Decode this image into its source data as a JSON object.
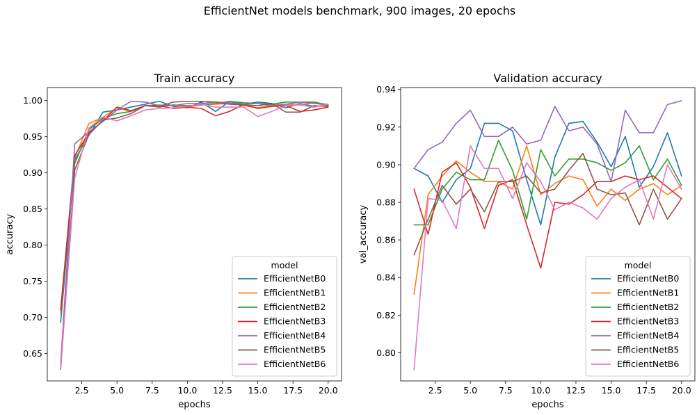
{
  "figure_title": "EfficientNet models benchmark, 900 images, 20 epochs",
  "colors": [
    "#1f77b4",
    "#ff7f0e",
    "#2ca02c",
    "#d62728",
    "#9467bd",
    "#8c564b",
    "#e377c2"
  ],
  "chart_data": [
    {
      "type": "line",
      "title": "Train accuracy",
      "xlabel": "epochs",
      "ylabel": "accuracy",
      "xlim": [
        0.05,
        20.95
      ],
      "ylim": [
        0.612,
        1.018
      ],
      "xticks": [
        2.5,
        5.0,
        7.5,
        10.0,
        12.5,
        15.0,
        17.5,
        20.0
      ],
      "xtick_labels": [
        "2.5",
        "5.0",
        "7.5",
        "10.0",
        "12.5",
        "15.0",
        "17.5",
        "20.0"
      ],
      "yticks": [
        0.65,
        0.7,
        0.75,
        0.8,
        0.85,
        0.9,
        0.95,
        1.0
      ],
      "ytick_labels": [
        "0.65",
        "0.70",
        "0.75",
        "0.80",
        "0.85",
        "0.90",
        "0.95",
        "1.00"
      ],
      "legend": {
        "title": "model",
        "placement": "lower-right"
      },
      "grid": false,
      "x": [
        1,
        2,
        3,
        4,
        5,
        6,
        7,
        8,
        9,
        10,
        11,
        12,
        13,
        14,
        15,
        16,
        17,
        18,
        19,
        20
      ],
      "series": [
        {
          "name": "EfficientNetB0",
          "values": [
            0.693,
            0.918,
            0.952,
            0.984,
            0.987,
            0.991,
            0.995,
            0.999,
            0.992,
            0.99,
            0.998,
            0.985,
            0.999,
            0.995,
            0.998,
            0.996,
            0.99,
            0.996,
            0.992,
            0.993
          ]
        },
        {
          "name": "EfficientNetB1",
          "values": [
            0.705,
            0.921,
            0.968,
            0.977,
            0.99,
            0.985,
            0.993,
            0.994,
            0.993,
            0.991,
            0.994,
            0.995,
            0.996,
            0.993,
            0.99,
            0.994,
            0.995,
            0.994,
            0.997,
            0.992
          ]
        },
        {
          "name": "EfficientNetB2",
          "values": [
            0.709,
            0.913,
            0.96,
            0.975,
            0.982,
            0.985,
            0.993,
            0.991,
            0.994,
            0.993,
            0.994,
            0.996,
            0.999,
            0.997,
            0.996,
            0.995,
            0.998,
            0.998,
            0.998,
            0.994
          ]
        },
        {
          "name": "EfficientNetB3",
          "values": [
            0.711,
            0.924,
            0.955,
            0.972,
            0.991,
            0.986,
            0.993,
            0.993,
            0.989,
            0.991,
            0.989,
            0.979,
            0.985,
            0.995,
            0.989,
            0.992,
            0.993,
            0.985,
            0.987,
            0.991
          ]
        },
        {
          "name": "EfficientNetB4",
          "values": [
            0.636,
            0.94,
            0.957,
            0.971,
            0.987,
            0.999,
            0.998,
            0.993,
            0.993,
            0.996,
            0.996,
            0.998,
            0.997,
            0.995,
            0.996,
            0.993,
            0.995,
            0.998,
            0.996,
            0.995
          ]
        },
        {
          "name": "EfficientNetB5",
          "values": [
            0.628,
            0.904,
            0.953,
            0.973,
            0.976,
            0.982,
            0.993,
            0.992,
            0.998,
            0.999,
            0.999,
            0.998,
            0.995,
            0.994,
            0.993,
            0.996,
            0.984,
            0.984,
            0.993,
            0.992
          ]
        },
        {
          "name": "EfficientNetB6",
          "values": [
            0.629,
            0.893,
            0.962,
            0.977,
            0.972,
            0.979,
            0.987,
            0.989,
            0.99,
            0.992,
            0.995,
            0.991,
            0.991,
            0.991,
            0.978,
            0.985,
            0.993,
            0.994,
            0.991,
            0.995
          ]
        }
      ]
    },
    {
      "type": "line",
      "title": "Validation accuracy",
      "xlabel": "epochs",
      "ylabel": "val_accuracy",
      "xlim": [
        0.05,
        20.95
      ],
      "ylim": [
        0.785,
        0.941
      ],
      "xticks": [
        2.5,
        5.0,
        7.5,
        10.0,
        12.5,
        15.0,
        17.5,
        20.0
      ],
      "xtick_labels": [
        "2.5",
        "5.0",
        "7.5",
        "10.0",
        "12.5",
        "15.0",
        "17.5",
        "20.0"
      ],
      "yticks": [
        0.8,
        0.82,
        0.84,
        0.86,
        0.88,
        0.9,
        0.92,
        0.94
      ],
      "ytick_labels": [
        "0.80",
        "0.82",
        "0.84",
        "0.86",
        "0.88",
        "0.90",
        "0.92",
        "0.94"
      ],
      "legend": {
        "title": "model",
        "placement": "lower-right"
      },
      "grid": false,
      "x": [
        1,
        2,
        3,
        4,
        5,
        6,
        7,
        8,
        9,
        10,
        11,
        12,
        13,
        14,
        15,
        16,
        17,
        18,
        19,
        20
      ],
      "series": [
        {
          "name": "EfficientNetB0",
          "values": [
            0.898,
            0.894,
            0.88,
            0.892,
            0.898,
            0.922,
            0.922,
            0.918,
            0.892,
            0.868,
            0.904,
            0.922,
            0.923,
            0.912,
            0.899,
            0.915,
            0.888,
            0.899,
            0.917,
            0.894
          ]
        },
        {
          "name": "EfficientNetB1",
          "values": [
            0.831,
            0.884,
            0.894,
            0.902,
            0.896,
            0.891,
            0.891,
            0.887,
            0.91,
            0.884,
            0.89,
            0.894,
            0.892,
            0.878,
            0.887,
            0.881,
            0.887,
            0.89,
            0.884,
            0.889
          ]
        },
        {
          "name": "EfficientNetB2",
          "values": [
            0.868,
            0.868,
            0.887,
            0.896,
            0.892,
            0.892,
            0.913,
            0.897,
            0.871,
            0.908,
            0.894,
            0.903,
            0.903,
            0.901,
            0.897,
            0.901,
            0.91,
            0.892,
            0.903,
            0.889
          ]
        },
        {
          "name": "EfficientNetB3",
          "values": [
            0.887,
            0.863,
            0.896,
            0.901,
            0.888,
            0.866,
            0.889,
            0.892,
            0.868,
            0.845,
            0.88,
            0.879,
            0.884,
            0.891,
            0.891,
            0.894,
            0.892,
            0.894,
            0.888,
            0.882
          ]
        },
        {
          "name": "EfficientNetB4",
          "values": [
            0.898,
            0.908,
            0.912,
            0.922,
            0.929,
            0.915,
            0.915,
            0.92,
            0.911,
            0.913,
            0.931,
            0.918,
            0.92,
            0.911,
            0.891,
            0.929,
            0.917,
            0.917,
            0.932,
            0.934
          ]
        },
        {
          "name": "EfficientNetB5",
          "values": [
            0.852,
            0.871,
            0.889,
            0.879,
            0.887,
            0.875,
            0.891,
            0.891,
            0.894,
            0.885,
            0.887,
            0.897,
            0.906,
            0.887,
            0.884,
            0.885,
            0.868,
            0.887,
            0.871,
            0.882
          ]
        },
        {
          "name": "EfficientNetB6",
          "values": [
            0.791,
            0.882,
            0.881,
            0.866,
            0.91,
            0.898,
            0.898,
            0.882,
            0.901,
            0.891,
            0.876,
            0.88,
            0.877,
            0.871,
            0.882,
            0.888,
            0.892,
            0.871,
            0.9,
            0.887
          ]
        }
      ]
    }
  ]
}
